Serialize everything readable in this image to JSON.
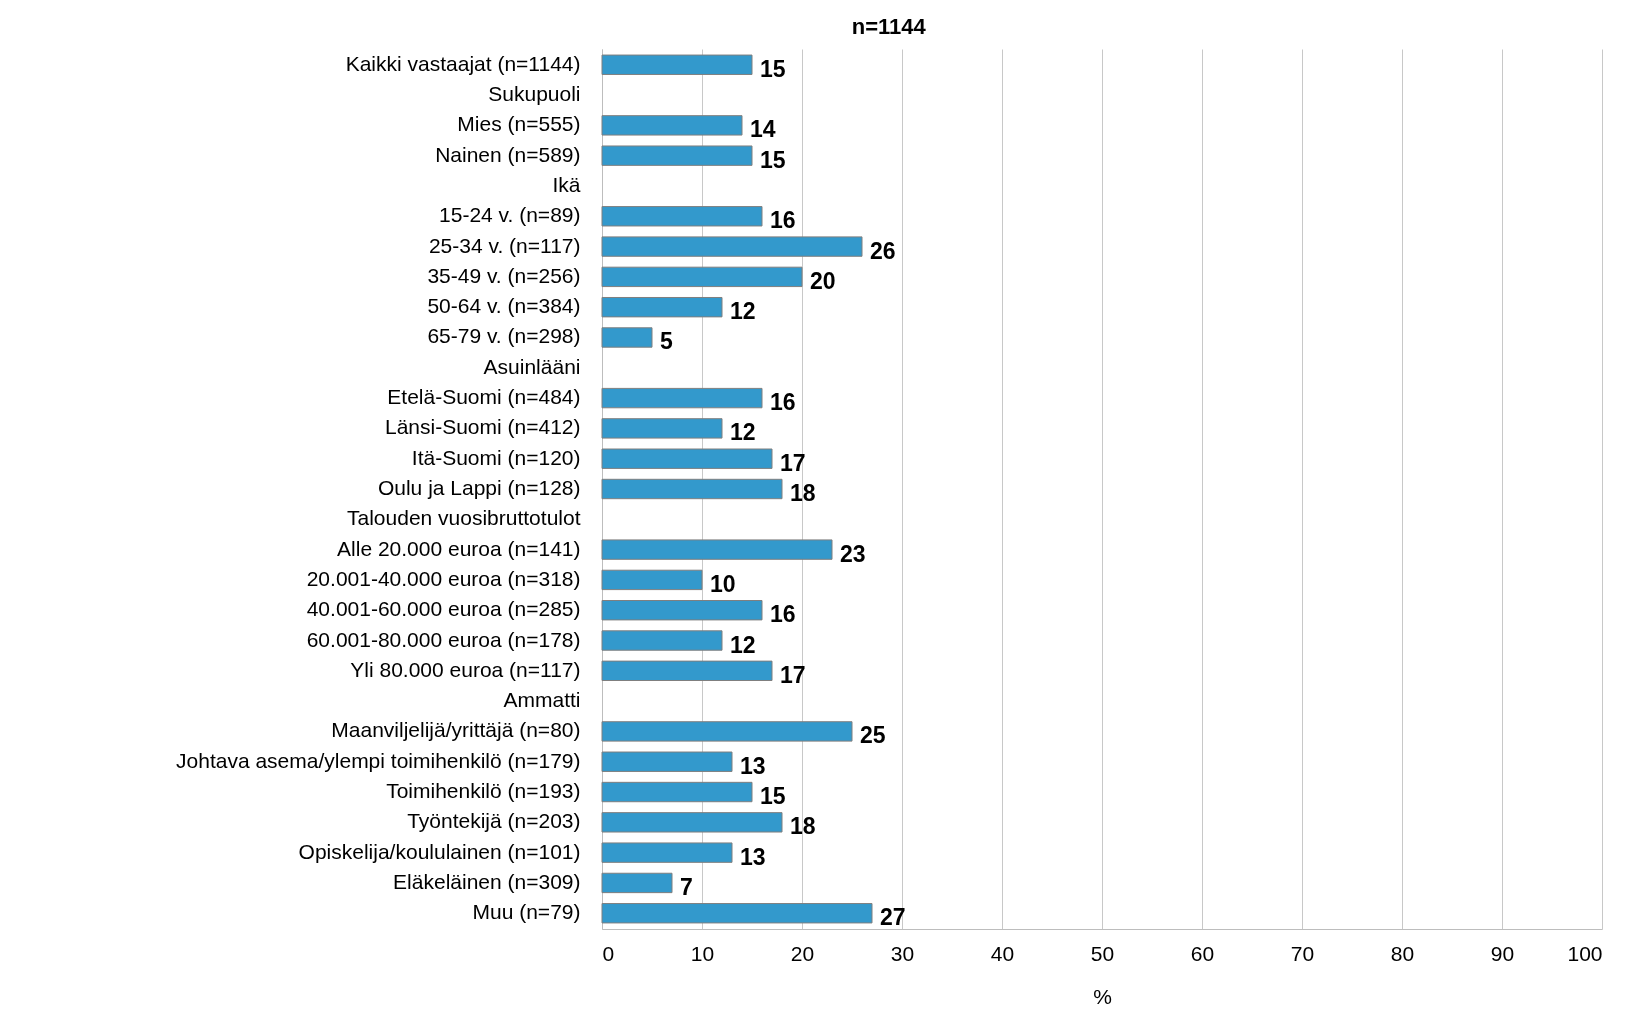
{
  "chart_data": {
    "type": "bar",
    "orientation": "horizontal",
    "title": "n=1144",
    "xlabel": "%",
    "categories": [
      "Kaikki vastaajat (n=1144)",
      "Sukupuoli",
      "Mies (n=555)",
      "Nainen (n=589)",
      "Ikä",
      "15-24 v. (n=89)",
      "25-34 v. (n=117)",
      "35-49 v. (n=256)",
      "50-64 v. (n=384)",
      "65-79 v. (n=298)",
      "Asuinlääni",
      "Etelä-Suomi (n=484)",
      "Länsi-Suomi (n=412)",
      "Itä-Suomi (n=120)",
      "Oulu ja Lappi (n=128)",
      "Talouden vuosibruttotulot",
      "Alle 20.000 euroa (n=141)",
      "20.001-40.000 euroa (n=318)",
      "40.001-60.000 euroa (n=285)",
      "60.001-80.000 euroa (n=178)",
      "Yli 80.000 euroa (n=117)",
      "Ammatti",
      "Maanviljelijä/yrittäjä (n=80)",
      "Johtava asema/ylempi toimihenkilö (n=179)",
      "Toimihenkilö (n=193)",
      "Työntekijä (n=203)",
      "Opiskelija/koululainen (n=101)",
      "Eläkeläinen (n=309)",
      "Muu (n=79)"
    ],
    "values": [
      15,
      null,
      14,
      15,
      null,
      16,
      26,
      20,
      12,
      5,
      null,
      16,
      12,
      17,
      18,
      null,
      23,
      10,
      16,
      12,
      17,
      null,
      25,
      13,
      15,
      18,
      13,
      7,
      27
    ],
    "color": "#3399cc",
    "xlim": [
      0,
      100
    ],
    "xticks": [
      0,
      10,
      20,
      30,
      40,
      50,
      60,
      70,
      80,
      90,
      100
    ],
    "grid": "x",
    "data_labels": true
  }
}
